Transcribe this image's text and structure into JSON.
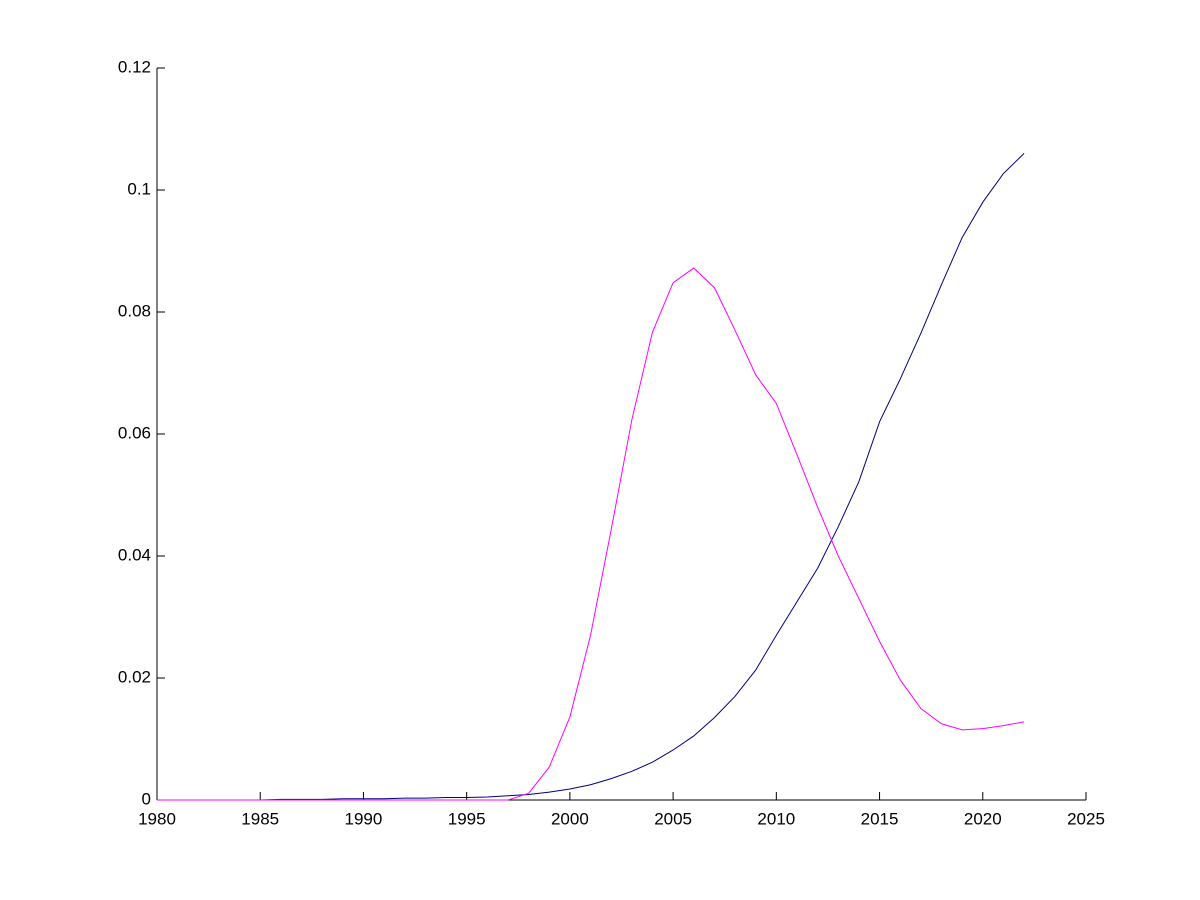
{
  "chart_data": {
    "type": "line",
    "x": [
      1980,
      1981,
      1982,
      1983,
      1984,
      1985,
      1986,
      1987,
      1988,
      1989,
      1990,
      1991,
      1992,
      1993,
      1994,
      1995,
      1996,
      1997,
      1998,
      1999,
      2000,
      2001,
      2002,
      2003,
      2004,
      2005,
      2006,
      2007,
      2008,
      2009,
      2010,
      2011,
      2012,
      2013,
      2014,
      2015,
      2016,
      2017,
      2018,
      2019,
      2020,
      2021,
      2022
    ],
    "series": [
      {
        "color": "#00007f",
        "values": [
          0,
          0,
          0,
          0,
          0,
          0,
          0.0001,
          0.0001,
          0.0001,
          0.0002,
          0.0002,
          0.0002,
          0.0003,
          0.0003,
          0.0004,
          0.0004,
          0.0005,
          0.0007,
          0.0009,
          0.0013,
          0.0018,
          0.0025,
          0.0035,
          0.0047,
          0.0062,
          0.0082,
          0.0105,
          0.0135,
          0.017,
          0.0213,
          0.027,
          0.0325,
          0.038,
          0.0448,
          0.0522,
          0.062,
          0.069,
          0.0765,
          0.0845,
          0.0922,
          0.098,
          0.1027,
          0.106
        ]
      },
      {
        "color": "#ff00ff",
        "values": [
          0,
          0,
          0,
          0,
          0,
          0,
          0,
          0,
          0,
          0,
          0,
          0,
          0,
          0,
          0,
          0,
          0,
          0,
          0.0011,
          0.0054,
          0.0136,
          0.027,
          0.0443,
          0.0623,
          0.0767,
          0.0848,
          0.0872,
          0.084,
          0.077,
          0.0697,
          0.065,
          0.0566,
          0.048,
          0.04,
          0.033,
          0.026,
          0.0197,
          0.015,
          0.0125,
          0.0115,
          0.0117,
          0.0122,
          0.0128
        ]
      }
    ],
    "xlim": [
      1980,
      2025
    ],
    "xticks": [
      1980,
      1985,
      1990,
      1995,
      2000,
      2005,
      2010,
      2015,
      2020,
      2025
    ],
    "ylim": [
      0,
      0.12
    ],
    "yticks": [
      0,
      0.02,
      0.04,
      0.06,
      0.08,
      0.1,
      0.12
    ]
  }
}
